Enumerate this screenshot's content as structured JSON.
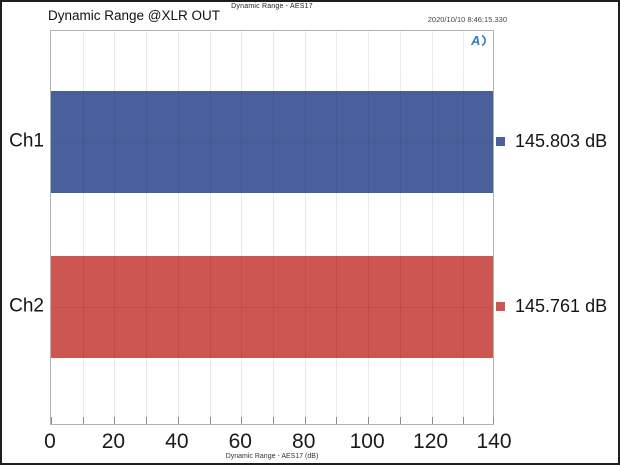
{
  "header": {
    "doc_title": "Dynamic Range - AES17",
    "page_title": "Dynamic Range @XLR OUT",
    "timestamp": "2020/10/10 8:46:15.330"
  },
  "logo": {
    "name": "AP",
    "color": "#2D7DBA"
  },
  "footer": {
    "axis_caption": "Dynamic Range - AES17 (dB)"
  },
  "chart_data": {
    "type": "bar",
    "orientation": "horizontal",
    "title": "Dynamic Range @XLR OUT",
    "categories": [
      "Ch1",
      "Ch2"
    ],
    "values": [
      145.803,
      145.761
    ],
    "value_labels": [
      "145.803 dB",
      "145.761 dB"
    ],
    "bar_colors": [
      "#49609D",
      "#CE5650"
    ],
    "xlabel": "Dynamic Range - AES17 (dB)",
    "xlim": [
      0,
      140
    ],
    "xticks": [
      0,
      20,
      40,
      60,
      80,
      100,
      120,
      140
    ],
    "minor_grid_step": 10,
    "grid": true,
    "bars_clipped_at_max": true,
    "legend_position": "none"
  }
}
